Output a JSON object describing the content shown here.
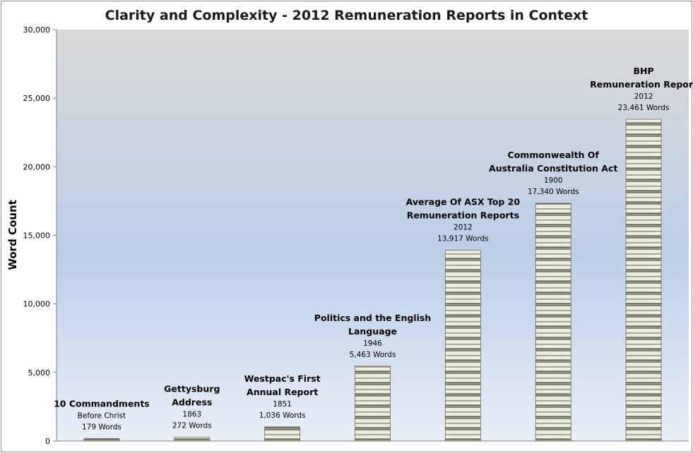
{
  "chart_data": {
    "type": "bar",
    "title": "Clarity and Complexity - 2012 Remuneration Reports in Context",
    "xlabel": "",
    "ylabel": "Word Count",
    "ylim": [
      0,
      30000
    ],
    "yticks": [
      "0",
      "5,000",
      "10,000",
      "15,000",
      "20,000",
      "25,000",
      "30,000"
    ],
    "grid": false,
    "legend": "none",
    "categories": [
      "10 Commandments",
      "Gettysburg Address",
      "Westpac's First Annual Report",
      "Politics and the English Language",
      "Average Of ASX Top 20 Remuneration Reports",
      "Commonwealth Of Australia Constitution Act",
      "BHP Remuneration Report"
    ],
    "values": [
      179,
      272,
      1036,
      5463,
      13917,
      17340,
      23461
    ],
    "labels": [
      {
        "title": [
          "10 Commandments"
        ],
        "year": "Before Christ",
        "words": "179 Words"
      },
      {
        "title": [
          "Gettysburg",
          "Address"
        ],
        "year": "1863",
        "words": "272 Words"
      },
      {
        "title": [
          "Westpac's First",
          "Annual Report"
        ],
        "year": "1851",
        "words": "1,036 Words"
      },
      {
        "title": [
          "Politics and the English",
          "Language"
        ],
        "year": "1946",
        "words": "5,463 Words"
      },
      {
        "title": [
          "Average Of ASX Top 20",
          "Remuneration Reports"
        ],
        "year": "2012",
        "words": "13,917 Words"
      },
      {
        "title": [
          "Commonwealth Of",
          "Australia Constitution Act"
        ],
        "year": "1900",
        "words": "17,340 Words"
      },
      {
        "title": [
          "BHP",
          "Remuneration Report"
        ],
        "year": "2012",
        "words": "23,461 Words"
      }
    ],
    "colors": {
      "plot_top": "#d9d9d9",
      "plot_mid": "#bccfe9",
      "plot_bottom": "#e8eef7",
      "bar_light": "#ececdf",
      "bar_mid": "#c7c7b6",
      "bar_dark": "#55554b"
    }
  }
}
